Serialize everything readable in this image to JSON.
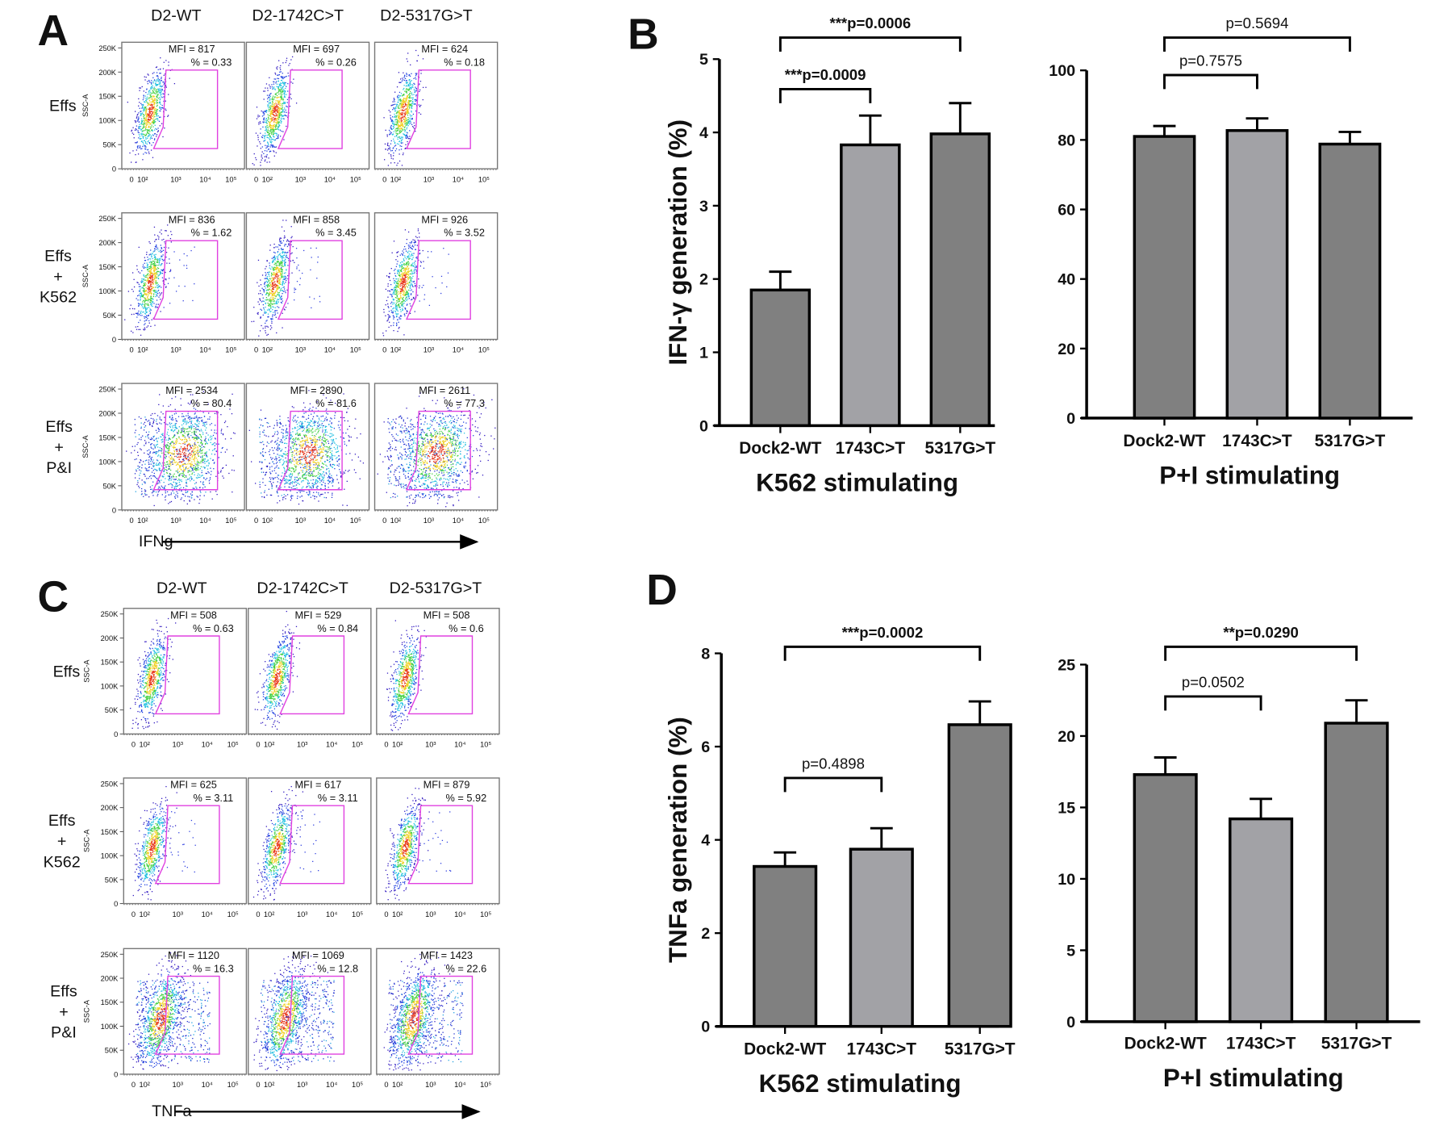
{
  "flow_panels": [
    {
      "label": "A",
      "columns": [
        "D2-WT",
        "D2-1742C>T",
        "D2-5317G>T"
      ],
      "y_axis_label": "SSC-A",
      "y_ticks": [
        "250K",
        "200K",
        "150K",
        "100K",
        "50K",
        "0"
      ],
      "x_ticks": [
        "0",
        "10²",
        "10³",
        "10⁴",
        "10⁵"
      ],
      "x_axis_label": "IFNg",
      "rows": [
        {
          "label_lines": [
            "Effs"
          ],
          "cells": [
            {
              "mfi": "MFI = 817",
              "pct": "% = 0.33"
            },
            {
              "mfi": "MFI = 697",
              "pct": "% = 0.26"
            },
            {
              "mfi": "MFI = 624",
              "pct": "% = 0.18"
            }
          ]
        },
        {
          "label_lines": [
            "Effs",
            "+",
            "K562"
          ],
          "cells": [
            {
              "mfi": "MFI = 836",
              "pct": "% = 1.62"
            },
            {
              "mfi": "MFI = 858",
              "pct": "% = 3.45"
            },
            {
              "mfi": "MFI = 926",
              "pct": "% = 3.52"
            }
          ]
        },
        {
          "label_lines": [
            "Effs",
            "+",
            "P&I"
          ],
          "cells": [
            {
              "mfi": "MFI = 2534",
              "pct": "% = 80.4"
            },
            {
              "mfi": "MFI = 2890",
              "pct": "% = 81.6"
            },
            {
              "mfi": "MFI = 2611",
              "pct": "% = 77.3"
            }
          ]
        }
      ]
    },
    {
      "label": "C",
      "columns": [
        "D2-WT",
        "D2-1742C>T",
        "D2-5317G>T"
      ],
      "y_axis_label": "SSC-A",
      "y_ticks": [
        "250K",
        "200K",
        "150K",
        "100K",
        "50K",
        "0"
      ],
      "x_ticks": [
        "0",
        "10²",
        "10³",
        "10⁴",
        "10⁵"
      ],
      "x_axis_label": "TNFa",
      "rows": [
        {
          "label_lines": [
            "Effs"
          ],
          "cells": [
            {
              "mfi": "MFI = 508",
              "pct": "% = 0.63"
            },
            {
              "mfi": "MFI = 529",
              "pct": "% = 0.84"
            },
            {
              "mfi": "MFI = 508",
              "pct": "% = 0.6"
            }
          ]
        },
        {
          "label_lines": [
            "Effs",
            "+",
            "K562"
          ],
          "cells": [
            {
              "mfi": "MFI = 625",
              "pct": "% = 3.11"
            },
            {
              "mfi": "MFI = 617",
              "pct": "% = 3.11"
            },
            {
              "mfi": "MFI = 879",
              "pct": "% = 5.92"
            }
          ]
        },
        {
          "label_lines": [
            "Effs",
            "+",
            "P&I"
          ],
          "cells": [
            {
              "mfi": "MFI = 1120",
              "pct": "% = 16.3"
            },
            {
              "mfi": "MFI = 1069",
              "pct": "% = 12.8"
            },
            {
              "mfi": "MFI = 1423",
              "pct": "% = 22.6"
            }
          ]
        }
      ]
    }
  ],
  "gate_color": "#e040e0",
  "chart_data": [
    {
      "panel": "B",
      "type": "bar",
      "categories": [
        "Dock2-WT",
        "1743C>T",
        "5317G>T"
      ],
      "values": [
        1.85,
        3.83,
        3.98
      ],
      "errors": [
        0.25,
        0.4,
        0.42
      ],
      "colors": [
        "#808080",
        "#a2a2a6",
        "#808080"
      ],
      "xlabel": "K562 stimulating",
      "ylabel": "IFN-γ generation (%)",
      "ylim": [
        0,
        5
      ],
      "yticks": [
        "0",
        "1",
        "2",
        "3",
        "4",
        "5"
      ],
      "comparisons": [
        {
          "pair": [
            0,
            1
          ],
          "label": "***p=0.0009",
          "bold": true
        },
        {
          "pair": [
            0,
            2
          ],
          "label": "***p=0.0006",
          "bold": true
        }
      ]
    },
    {
      "panel": "",
      "type": "bar",
      "categories": [
        "Dock2-WT",
        "1743C>T",
        "5317G>T"
      ],
      "values": [
        81.0,
        82.7,
        78.8
      ],
      "errors": [
        3.0,
        3.5,
        3.5
      ],
      "colors": [
        "#808080",
        "#a2a2a6",
        "#808080"
      ],
      "xlabel": "P+I stimulating",
      "ylabel": "",
      "ylim": [
        0,
        100
      ],
      "yticks": [
        "0",
        "20",
        "40",
        "60",
        "80",
        "100"
      ],
      "comparisons": [
        {
          "pair": [
            0,
            1
          ],
          "label": "p=0.7575",
          "bold": false
        },
        {
          "pair": [
            0,
            2
          ],
          "label": "p=0.5694",
          "bold": false
        }
      ]
    },
    {
      "panel": "D",
      "type": "bar",
      "categories": [
        "Dock2-WT",
        "1743C>T",
        "5317G>T"
      ],
      "values": [
        3.43,
        3.8,
        6.47
      ],
      "errors": [
        0.3,
        0.45,
        0.5
      ],
      "colors": [
        "#808080",
        "#a2a2a6",
        "#808080"
      ],
      "xlabel": "K562 stimulating",
      "ylabel": "TNFa generation (%)",
      "ylim": [
        0,
        8
      ],
      "yticks": [
        "0",
        "2",
        "4",
        "6",
        "8"
      ],
      "comparisons": [
        {
          "pair": [
            0,
            1
          ],
          "label": "p=0.4898",
          "bold": false
        },
        {
          "pair": [
            0,
            2
          ],
          "label": "***p=0.0002",
          "bold": true
        }
      ]
    },
    {
      "panel": "",
      "type": "bar",
      "categories": [
        "Dock2-WT",
        "1743C>T",
        "5317G>T"
      ],
      "values": [
        17.3,
        14.2,
        20.9
      ],
      "errors": [
        1.2,
        1.4,
        1.6
      ],
      "colors": [
        "#808080",
        "#a2a2a6",
        "#808080"
      ],
      "xlabel": "P+I stimulating",
      "ylabel": "",
      "ylim": [
        0,
        25
      ],
      "yticks": [
        "0",
        "5",
        "10",
        "15",
        "20",
        "25"
      ],
      "comparisons": [
        {
          "pair": [
            0,
            1
          ],
          "label": "p=0.0502",
          "bold": false
        },
        {
          "pair": [
            0,
            2
          ],
          "label": "**p=0.0290",
          "bold": true
        }
      ]
    }
  ]
}
